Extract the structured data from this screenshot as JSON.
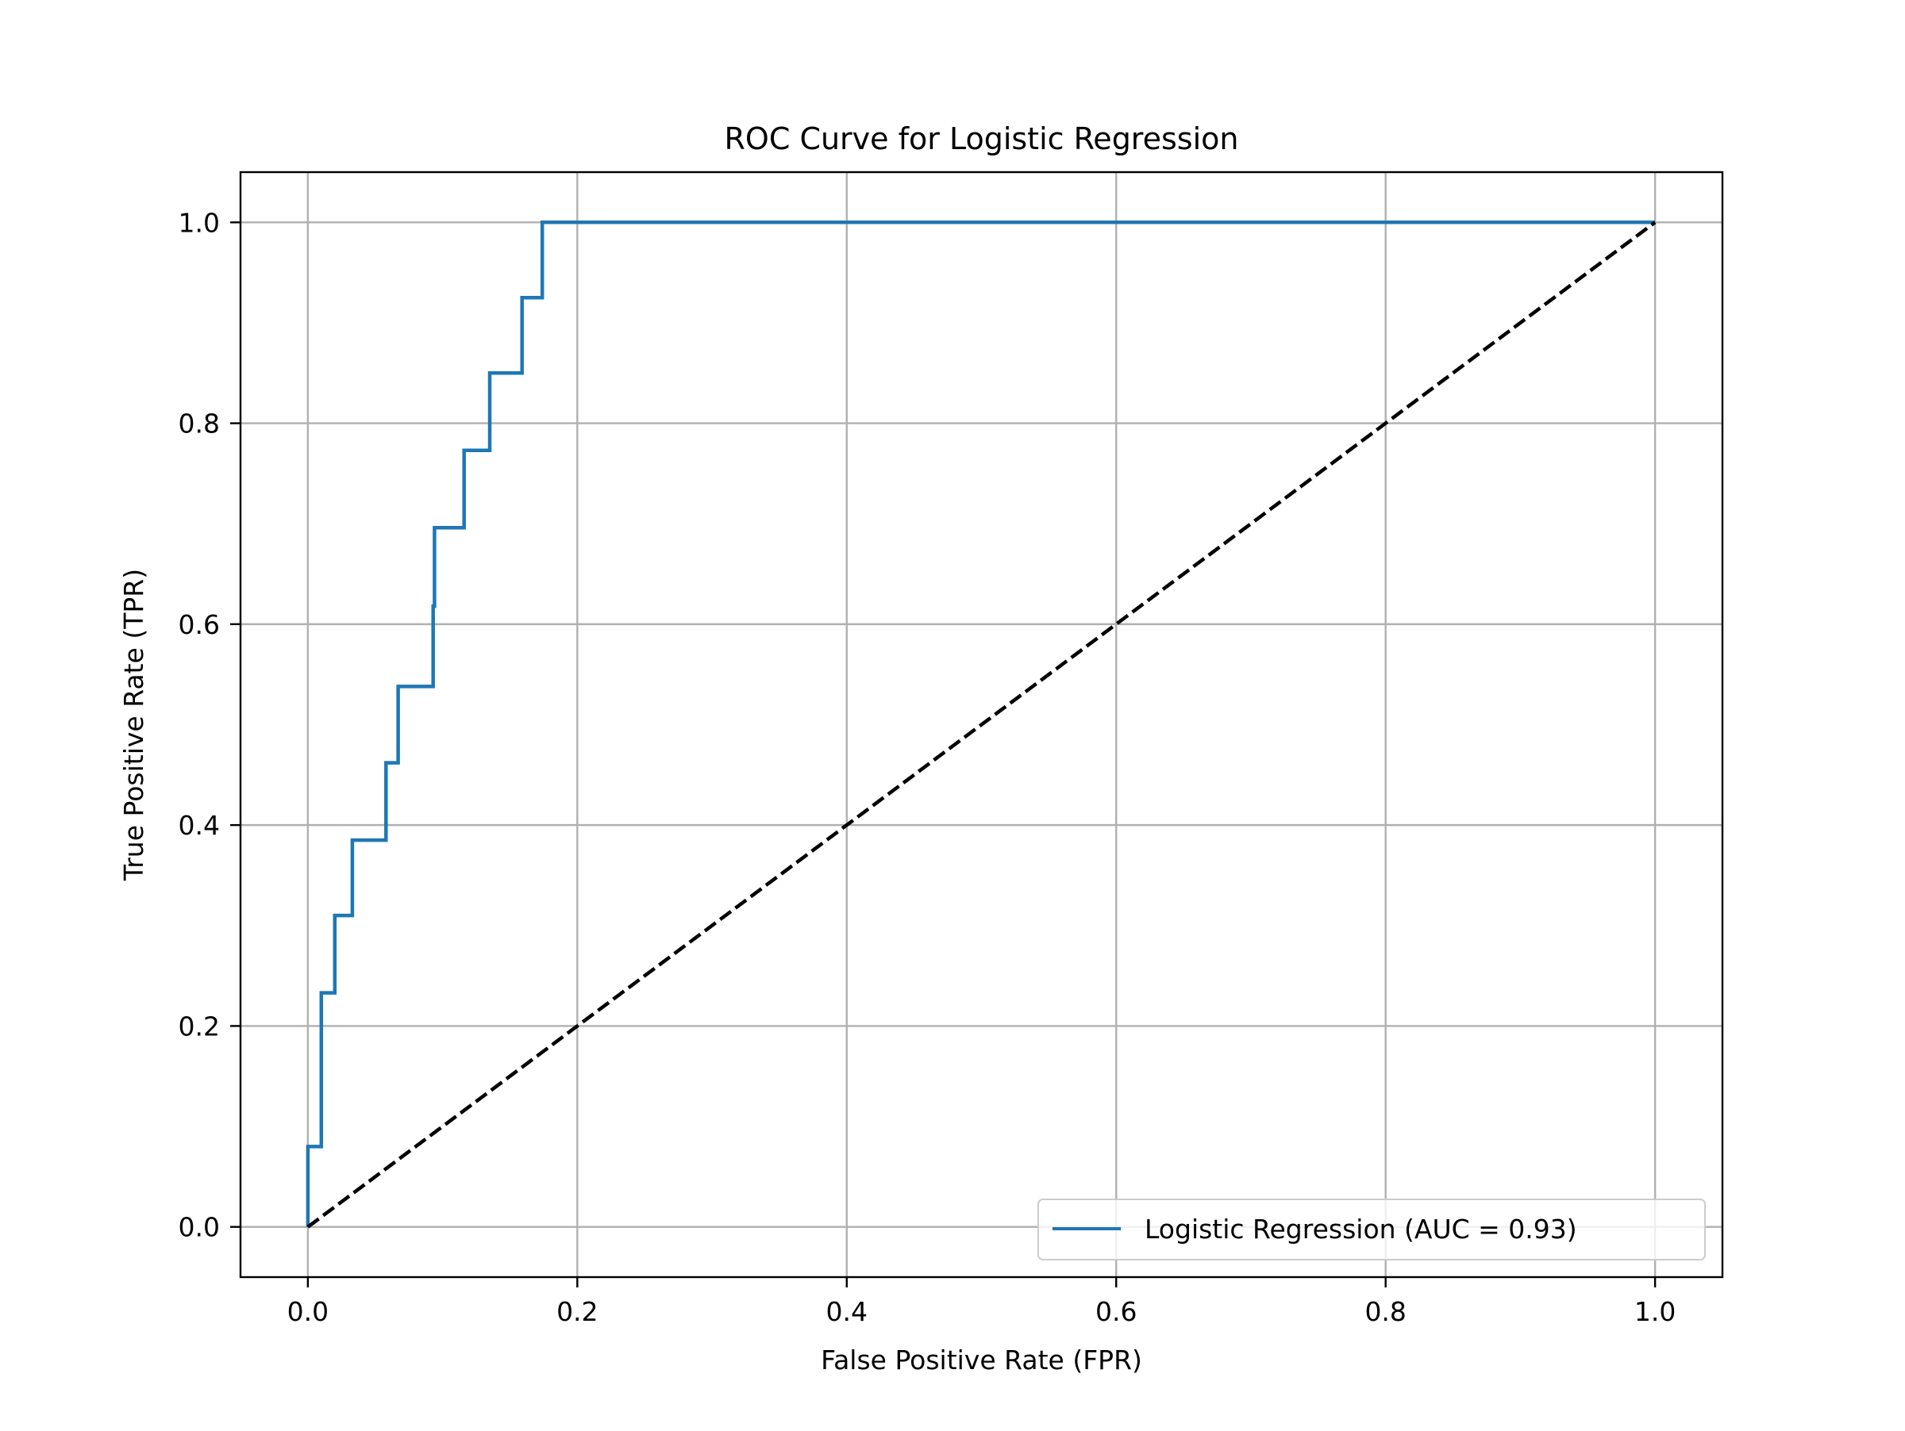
{
  "chart_data": {
    "type": "line",
    "title": "ROC Curve for Logistic Regression",
    "xlabel": "False Positive Rate (FPR)",
    "ylabel": "True Positive Rate (TPR)",
    "xlim": [
      -0.05,
      1.05
    ],
    "ylim": [
      -0.05,
      1.05
    ],
    "xticks": [
      0.0,
      0.2,
      0.4,
      0.6,
      0.8,
      1.0
    ],
    "yticks": [
      0.0,
      0.2,
      0.4,
      0.6,
      0.8,
      1.0
    ],
    "xtick_labels": [
      "0.0",
      "0.2",
      "0.4",
      "0.6",
      "0.8",
      "1.0"
    ],
    "ytick_labels": [
      "0.0",
      "0.2",
      "0.4",
      "0.6",
      "0.8",
      "1.0"
    ],
    "grid": true,
    "legend_position": "lower right",
    "series": [
      {
        "name": "Logistic Regression (AUC = 0.93)",
        "color": "#1f77b4",
        "style": "solid",
        "x": [
          0.0,
          0.0,
          0.01,
          0.01,
          0.02,
          0.02,
          0.033,
          0.033,
          0.058,
          0.058,
          0.067,
          0.067,
          0.093,
          0.093,
          0.094,
          0.094,
          0.116,
          0.116,
          0.135,
          0.135,
          0.159,
          0.159,
          0.174,
          0.174,
          1.0
        ],
        "y": [
          0.0,
          0.08,
          0.08,
          0.233,
          0.233,
          0.31,
          0.31,
          0.385,
          0.385,
          0.462,
          0.462,
          0.538,
          0.538,
          0.618,
          0.618,
          0.696,
          0.696,
          0.773,
          0.773,
          0.85,
          0.85,
          0.925,
          0.925,
          1.0,
          1.0
        ]
      },
      {
        "name": "",
        "color": "#000000",
        "style": "dashed",
        "x": [
          0.0,
          1.0
        ],
        "y": [
          0.0,
          1.0
        ]
      }
    ]
  }
}
